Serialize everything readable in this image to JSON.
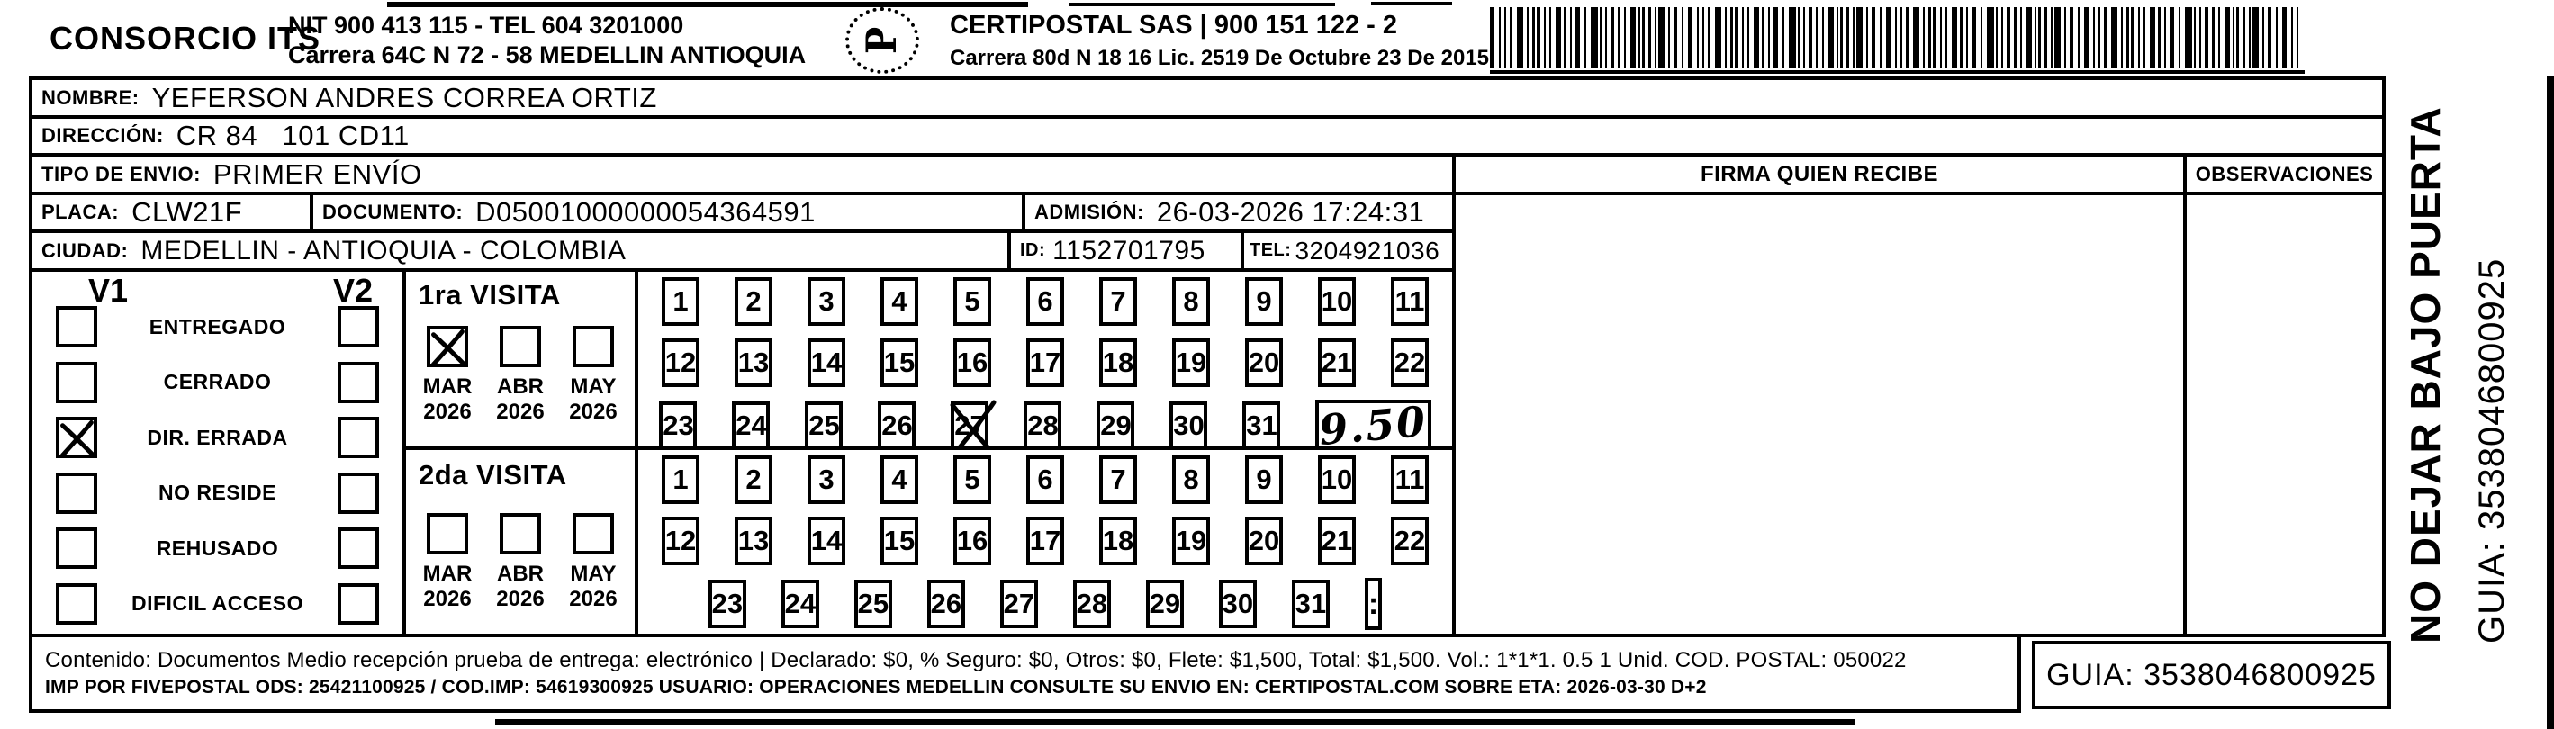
{
  "header": {
    "company_name": "CONSORCIO ITS",
    "company_nit": "NIT 900 413 115 - TEL 604 3201000",
    "company_address": "Carrera 64C N 72 - 58 MEDELLIN ANTIOQUIA",
    "logo_name": "CERTIPOSTAL",
    "carrier_name": "CERTIPOSTAL SAS | 900 151 122 - 2",
    "carrier_address": "Carrera 80d N 18 16  Lic. 2519 De Octubre 23 De 2015"
  },
  "shipment": {
    "nombre_label": "NOMBRE:",
    "nombre": "YEFERSON ANDRES CORREA ORTIZ",
    "direccion_label": "DIRECCIÓN:",
    "direccion": "CR 84   101 CD11",
    "tipo_envio_label": "TIPO DE ENVIO:",
    "tipo_envio": "PRIMER ENVÍO",
    "placa_label": "PLACA:",
    "placa": "CLW21F",
    "documento_label": "DOCUMENTO:",
    "documento": "D05001000000054364591",
    "admision_label": "ADMISIÓN:",
    "admision": "26-03-2026 17:24:31",
    "ciudad_label": "CIUDAD:",
    "ciudad": "MEDELLIN - ANTIOQUIA - COLOMBIA",
    "id_label": "ID:",
    "id": "1152701795",
    "tel_label": "TEL:",
    "tel": "3204921036"
  },
  "delivery_status": {
    "col1_label": "V1",
    "col2_label": "V2",
    "items": [
      {
        "label": "ENTREGADO",
        "v1_checked": false,
        "v2_checked": false
      },
      {
        "label": "CERRADO",
        "v1_checked": false,
        "v2_checked": false
      },
      {
        "label": "DIR. ERRADA",
        "v1_checked": true,
        "v2_checked": false
      },
      {
        "label": "NO RESIDE",
        "v1_checked": false,
        "v2_checked": false
      },
      {
        "label": "REHUSADO",
        "v1_checked": false,
        "v2_checked": false
      },
      {
        "label": "DIFICIL ACCESO",
        "v1_checked": false,
        "v2_checked": false
      }
    ]
  },
  "visits": [
    {
      "title": "1ra VISITA",
      "months": [
        {
          "month": "MAR",
          "year": "2026",
          "checked": true
        },
        {
          "month": "ABR",
          "year": "2026",
          "checked": false
        },
        {
          "month": "MAY",
          "year": "2026",
          "checked": false
        }
      ],
      "day_count": 31,
      "days_per_row": 11,
      "marked_day": 27,
      "time_cell": {
        "style": "handwritten",
        "text": "9.50"
      }
    },
    {
      "title": "2da VISITA",
      "months": [
        {
          "month": "MAR",
          "year": "2026",
          "checked": false
        },
        {
          "month": "ABR",
          "year": "2026",
          "checked": false
        },
        {
          "month": "MAY",
          "year": "2026",
          "checked": false
        }
      ],
      "day_count": 31,
      "days_per_row": 11,
      "marked_day": null,
      "time_cell": {
        "style": "printed",
        "text": ":"
      }
    }
  ],
  "signature": {
    "firma_header": "FIRMA QUIEN RECIBE",
    "observaciones_header": "OBSERVACIONES"
  },
  "side_note": {
    "line1": "NO DEJAR BAJO PUERTA",
    "line2": "GUIA: 3538046800925"
  },
  "footer": {
    "content_line": "Contenido: Documentos Medio recepción prueba de entrega: electrónico | Declarado: $0, % Seguro: $0, Otros: $0, Flete: $1,500, Total: $1,500. Vol.: 1*1*1. 0.5 1 Unid. COD. POSTAL: 050022",
    "imp_line": "IMP POR FIVEPOSTAL ODS: 25421100925 / COD.IMP: 54619300925 USUARIO: OPERACIONES MEDELLIN CONSULTE SU ENVIO EN: CERTIPOSTAL.COM SOBRE ETA: 2026-03-30 D+2",
    "guia": "GUIA: 3538046800925"
  },
  "colors": {
    "ink": "#000000",
    "paper": "#ffffff"
  }
}
